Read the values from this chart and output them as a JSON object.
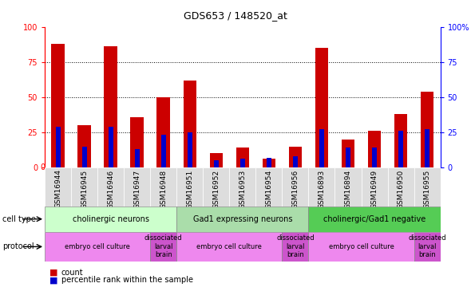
{
  "title": "GDS653 / 148520_at",
  "samples": [
    "GSM16944",
    "GSM16945",
    "GSM16946",
    "GSM16947",
    "GSM16948",
    "GSM16951",
    "GSM16952",
    "GSM16953",
    "GSM16954",
    "GSM16956",
    "GSM16893",
    "GSM16894",
    "GSM16949",
    "GSM16950",
    "GSM16955"
  ],
  "counts": [
    88,
    30,
    86,
    36,
    50,
    62,
    10,
    14,
    6,
    15,
    85,
    20,
    26,
    38,
    54
  ],
  "percentile": [
    29,
    15,
    29,
    13,
    23,
    25,
    5,
    6,
    7,
    8,
    27,
    14,
    14,
    26,
    27
  ],
  "bar_color": "#cc0000",
  "pct_color": "#0000cc",
  "ylim": [
    0,
    100
  ],
  "grid_ticks": [
    25,
    50,
    75
  ],
  "left_yticks": [
    0,
    25,
    50,
    75,
    100
  ],
  "left_yticklabels": [
    "0",
    "25",
    "50",
    "75",
    "100"
  ],
  "right_yticklabels": [
    "0",
    "25",
    "50",
    "75",
    "100%"
  ],
  "cell_type_groups": [
    {
      "label": "cholinergic neurons",
      "start": 0,
      "end": 5,
      "color": "#ccffcc"
    },
    {
      "label": "Gad1 expressing neurons",
      "start": 5,
      "end": 10,
      "color": "#99ee99"
    },
    {
      "label": "cholinergic/Gad1 negative",
      "start": 10,
      "end": 15,
      "color": "#44dd44"
    }
  ],
  "protocol_groups": [
    {
      "label": "embryo cell culture",
      "start": 0,
      "end": 4,
      "color": "#ee88ee"
    },
    {
      "label": "dissociated\nlarval\nbrain",
      "start": 4,
      "end": 5,
      "color": "#cc55cc"
    },
    {
      "label": "embryo cell culture",
      "start": 5,
      "end": 9,
      "color": "#ee88ee"
    },
    {
      "label": "dissociated\nlarval\nbrain",
      "start": 9,
      "end": 10,
      "color": "#cc55cc"
    },
    {
      "label": "embryo cell culture",
      "start": 10,
      "end": 14,
      "color": "#ee88ee"
    },
    {
      "label": "dissociated\nlarval\nbrain",
      "start": 14,
      "end": 15,
      "color": "#cc55cc"
    }
  ],
  "count_legend": "count",
  "pct_legend": "percentile rank within the sample",
  "cell_type_label": "cell type",
  "protocol_label": "protocol",
  "bar_width": 0.5,
  "pct_bar_width": 0.18
}
